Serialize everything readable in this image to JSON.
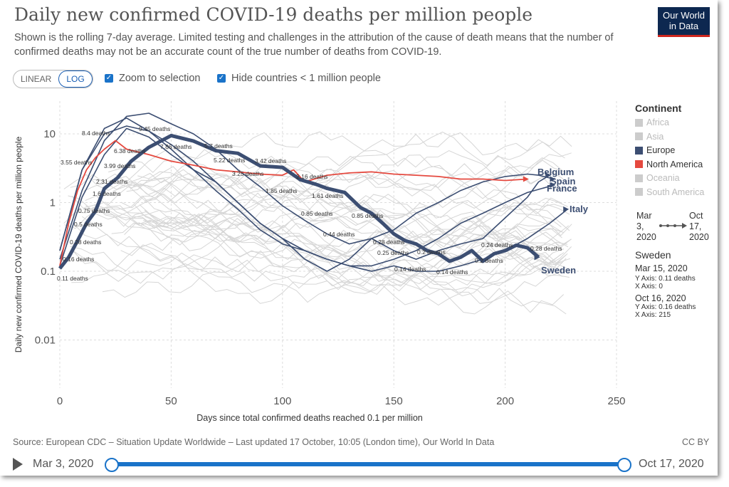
{
  "header": {
    "title": "Daily new confirmed COVID-19 deaths per million people",
    "subtitle": "Shown is the rolling 7-day average. Limited testing and challenges in the attribution of the cause of death means that the number of confirmed deaths may not be an accurate count of the true number of deaths from COVID-19.",
    "logo_line1": "Our World",
    "logo_line2": "in Data"
  },
  "controls": {
    "linear_label": "LINEAR",
    "log_label": "LOG",
    "log_selected": true,
    "zoom_label": "Zoom to selection",
    "zoom_checked": true,
    "hide_label": "Hide countries < 1 million people",
    "hide_checked": true
  },
  "legend": {
    "title": "Continent",
    "items": [
      {
        "label": "Africa",
        "color": "#cccccc",
        "active": false
      },
      {
        "label": "Asia",
        "color": "#cccccc",
        "active": false
      },
      {
        "label": "Europe",
        "color": "#3c4e72",
        "active": true
      },
      {
        "label": "North America",
        "color": "#e5493f",
        "active": true
      },
      {
        "label": "Oceania",
        "color": "#cccccc",
        "active": false
      },
      {
        "label": "South America",
        "color": "#cccccc",
        "active": false
      }
    ],
    "range_start_line1": "Mar",
    "range_start_line2": "3,",
    "range_start_line3": "2020",
    "range_end_line1": "Oct",
    "range_end_line2": "17,",
    "range_end_line3": "2020"
  },
  "hover_info": {
    "country": "Sweden",
    "first_date": "Mar 15, 2020",
    "first_y": "Y Axis: 0.11 deaths",
    "first_x": "X Axis: 0",
    "last_date": "Oct 16, 2020",
    "last_y": "Y Axis: 0.16 deaths",
    "last_x": "X Axis: 215"
  },
  "footer": {
    "source": "Source: European CDC – Situation Update Worldwide – Last updated 17 October, 10:05 (London time), Our World In Data",
    "license": "CC BY"
  },
  "timeline": {
    "start_label": "Mar 3, 2020",
    "end_label": "Oct 17, 2020"
  },
  "chart_data": {
    "type": "line",
    "title": "Daily new confirmed COVID-19 deaths per million people",
    "xlabel": "Days since total confirmed deaths reached 0.1 per million",
    "ylabel": "Daily new confirmed COVID-19 deaths per million people",
    "xlim": [
      0,
      250
    ],
    "ylim": [
      0.002,
      30
    ],
    "y_scale": "log",
    "x_ticks": [
      0,
      50,
      100,
      150,
      200,
      250
    ],
    "y_ticks": [
      0.01,
      0.1,
      1,
      10
    ],
    "y_tick_labels": [
      "0.01",
      "0.1",
      "1",
      "10"
    ],
    "grid": true,
    "series": [
      {
        "name": "Sweden",
        "color": "#3c4e72",
        "width": 5,
        "x": [
          0,
          4,
          8,
          12,
          16,
          20,
          26,
          32,
          40,
          50,
          60,
          70,
          80,
          90,
          100,
          108,
          115,
          120,
          128,
          135,
          140,
          145,
          150,
          155,
          160,
          165,
          170,
          175,
          180,
          185,
          190,
          195,
          200,
          205,
          210,
          215
        ],
        "y": [
          0.11,
          0.16,
          0.28,
          0.5,
          0.75,
          1.6,
          2.31,
          3.99,
          6.38,
          9.45,
          7.86,
          5.7,
          5.22,
          3.42,
          3.25,
          2.16,
          1.85,
          1.61,
          1.4,
          0.85,
          0.7,
          0.5,
          0.35,
          0.28,
          0.25,
          0.2,
          0.18,
          0.14,
          0.16,
          0.2,
          0.14,
          0.18,
          0.2,
          0.24,
          0.22,
          0.16
        ]
      },
      {
        "name": "Belgium",
        "color": "#3c4e72",
        "width": 1.6,
        "x": [
          0,
          10,
          20,
          30,
          40,
          50,
          60,
          70,
          80,
          90,
          100,
          110,
          120,
          130,
          140,
          150,
          160,
          170,
          180,
          190,
          200,
          210,
          215,
          220
        ],
        "y": [
          0.15,
          1.5,
          8,
          18,
          20,
          14,
          10,
          6,
          3,
          1.7,
          0.9,
          0.55,
          0.35,
          0.25,
          0.3,
          0.2,
          0.15,
          0.2,
          0.25,
          0.3,
          0.6,
          1.2,
          2,
          2.5
        ]
      },
      {
        "name": "Spain",
        "color": "#3c4e72",
        "width": 1.6,
        "x": [
          0,
          10,
          20,
          30,
          40,
          50,
          60,
          70,
          80,
          90,
          100,
          110,
          120,
          130,
          140,
          150,
          160,
          170,
          180,
          190,
          200,
          210,
          215,
          222
        ],
        "y": [
          0.2,
          3,
          12,
          17,
          11,
          6,
          3,
          2,
          1,
          0.5,
          0.3,
          0.15,
          0.1,
          0.15,
          0.3,
          0.4,
          0.7,
          1,
          1.5,
          2,
          2.4,
          2.6,
          2.5,
          2.2
        ]
      },
      {
        "name": "France",
        "color": "#3c4e72",
        "width": 1.6,
        "x": [
          0,
          10,
          20,
          30,
          40,
          50,
          60,
          70,
          80,
          90,
          100,
          110,
          120,
          130,
          140,
          150,
          160,
          170,
          180,
          190,
          200,
          210,
          222
        ],
        "y": [
          0.12,
          1.2,
          5,
          12,
          9,
          5,
          3,
          1.5,
          0.8,
          0.4,
          0.25,
          0.2,
          0.15,
          0.12,
          0.12,
          0.15,
          0.2,
          0.3,
          0.5,
          0.7,
          1,
          1.4,
          1.8
        ]
      },
      {
        "name": "Italy",
        "color": "#3c4e72",
        "width": 1.6,
        "x": [
          0,
          10,
          20,
          30,
          40,
          50,
          60,
          70,
          80,
          90,
          100,
          110,
          120,
          130,
          140,
          150,
          160,
          170,
          180,
          190,
          200,
          210,
          220,
          228
        ],
        "y": [
          0.2,
          3,
          10,
          13,
          11,
          7,
          4,
          2,
          1,
          0.5,
          0.3,
          0.2,
          0.15,
          0.12,
          0.1,
          0.12,
          0.1,
          0.1,
          0.12,
          0.15,
          0.2,
          0.3,
          0.5,
          0.8
        ]
      },
      {
        "name": "North America",
        "color": "#e5493f",
        "width": 1.8,
        "x": [
          0,
          4,
          8,
          12,
          16,
          20,
          25,
          30,
          40,
          50,
          60,
          70,
          80,
          90,
          100,
          105,
          110,
          120,
          130,
          140,
          150,
          160,
          170,
          180,
          190,
          200,
          210
        ],
        "y": [
          0.12,
          0.5,
          1.5,
          3,
          4.5,
          6,
          8,
          6,
          5,
          4,
          3.5,
          3,
          2.8,
          2.6,
          2.5,
          3,
          2,
          2.5,
          2.7,
          2.8,
          2.6,
          2.5,
          2.4,
          2.2,
          2.2,
          2.1,
          2.2
        ]
      }
    ],
    "annotations": [
      "0.11 deaths",
      "0.16 deaths",
      "0.28 deaths",
      "0.5 deaths",
      "0.75 deaths",
      "1.6 deaths",
      "2.31 deaths",
      "3.99 deaths",
      "6.38 deaths",
      "9.45 deaths",
      "8.4 deaths",
      "3.55 deaths",
      "7.86 deaths",
      "5.7 deaths",
      "5.22 deaths",
      "3.42 deaths",
      "3.25 deaths",
      "2.16 deaths",
      "1.85 deaths",
      "1.61 deaths",
      "0.85 deaths",
      "0.85 deaths",
      "0.44 deaths",
      "0.28 deaths",
      "0.25 deaths",
      "0.2 deaths",
      "0.14 deaths",
      "0.14 deaths",
      "0.2 deaths",
      "0.24 deaths",
      "0.28 deaths"
    ],
    "end_labels": [
      "Belgium",
      "Spain",
      "France",
      "Italy",
      "Sweden"
    ],
    "legend_position": "right"
  }
}
